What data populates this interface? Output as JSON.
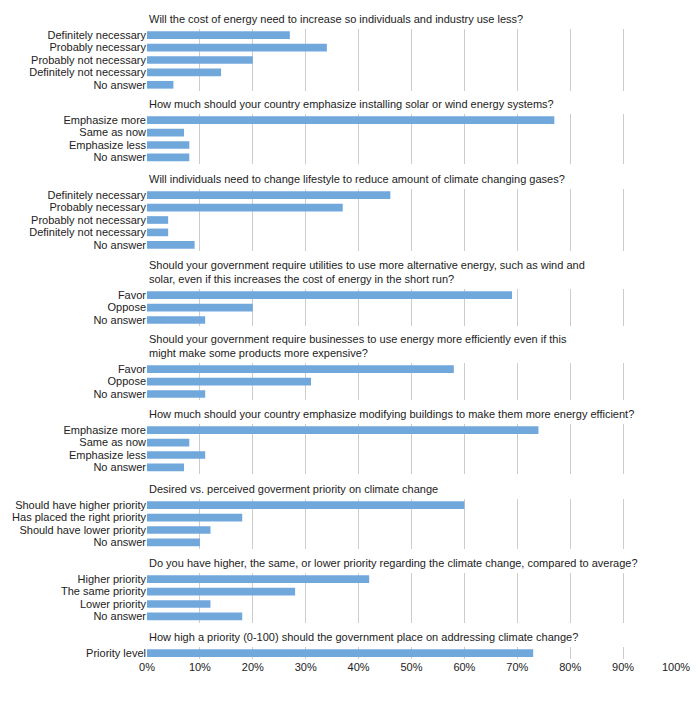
{
  "chart_data": {
    "type": "bar",
    "orientation": "horizontal",
    "color": "#70a8dc",
    "grid": true,
    "xlim": [
      0,
      100
    ],
    "xticks": [
      {
        "value": 0,
        "label": "0%"
      },
      {
        "value": 10,
        "label": "10%"
      },
      {
        "value": 20,
        "label": "20%"
      },
      {
        "value": 30,
        "label": "30%"
      },
      {
        "value": 40,
        "label": "40%"
      },
      {
        "value": 50,
        "label": "50%"
      },
      {
        "value": 60,
        "label": "60%"
      },
      {
        "value": 70,
        "label": "70%"
      },
      {
        "value": 80,
        "label": "80%"
      },
      {
        "value": 90,
        "label": "90%"
      },
      {
        "value": 100,
        "label": "100%"
      }
    ],
    "panels": [
      {
        "title": "Will the cost of energy need to increase so individuals and industry use less?",
        "categories": [
          "Definitely necessary",
          "Probably necessary",
          "Probably not necessary",
          "Definitely not necessary",
          "No answer"
        ],
        "values": [
          27,
          34,
          20,
          14,
          5
        ]
      },
      {
        "title": "How much should your country emphasize installing solar or wind energy systems?",
        "categories": [
          "Emphasize more",
          "Same as now",
          "Emphasize less",
          "No answer"
        ],
        "values": [
          77,
          7,
          8,
          8
        ]
      },
      {
        "title": "Will individuals need to change lifestyle to reduce amount of climate changing gases?",
        "categories": [
          "Definitely necessary",
          "Probably necessary",
          "Probably not necessary",
          "Definitely not necessary",
          "No answer"
        ],
        "values": [
          46,
          37,
          4,
          4,
          9
        ]
      },
      {
        "title": "Should your government require utilities to use more alternative energy, such as wind and\nsolar, even if this increases the cost of energy in the short run?",
        "categories": [
          "Favor",
          "Oppose",
          "No answer"
        ],
        "values": [
          69,
          20,
          11
        ]
      },
      {
        "title": "Should your government require businesses to use energy more efficiently even if this\nmight make some products more expensive?",
        "categories": [
          "Favor",
          "Oppose",
          "No answer"
        ],
        "values": [
          58,
          31,
          11
        ]
      },
      {
        "title": "How much should your country emphasize modifying buildings to make them more energy efficient?",
        "categories": [
          "Emphasize more",
          "Same as now",
          "Emphasize less",
          "No answer"
        ],
        "values": [
          74,
          8,
          11,
          7
        ]
      },
      {
        "title": "Desired vs. perceived goverment priority on climate change",
        "categories": [
          "Should have higher priority",
          "Has placed the right priority",
          "Should have lower priority",
          "No answer"
        ],
        "values": [
          60,
          18,
          12,
          10
        ]
      },
      {
        "title": "Do you have higher, the same, or lower priority regarding the climate change, compared to average?",
        "categories": [
          "Higher priority",
          "The same priority",
          "Lower priority",
          "No answer"
        ],
        "values": [
          42,
          28,
          12,
          18
        ]
      },
      {
        "title": "How high a priority (0-100) should the government place on addressing climate change?",
        "categories": [
          "Priority level"
        ],
        "values": [
          73
        ]
      }
    ]
  }
}
